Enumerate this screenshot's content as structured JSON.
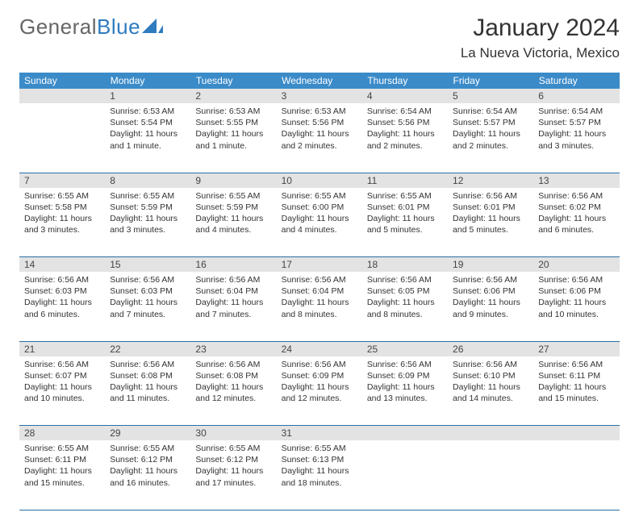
{
  "brand": {
    "part1": "General",
    "part2": "Blue"
  },
  "title": "January 2024",
  "location": "La Nueva Victoria, Mexico",
  "weekdays": [
    "Sunday",
    "Monday",
    "Tuesday",
    "Wednesday",
    "Thursday",
    "Friday",
    "Saturday"
  ],
  "colors": {
    "header_bg": "#3b8bc9",
    "header_text": "#ffffff",
    "daynum_bg": "#e3e3e3",
    "rule": "#2a6fa8",
    "brand_blue": "#2f7bbf"
  },
  "typography": {
    "title_fontsize": 30,
    "location_fontsize": 17,
    "weekday_fontsize": 12,
    "cell_fontsize": 10.5
  },
  "layout": {
    "columns": 7,
    "rows": 5,
    "first_weekday_offset": 1
  },
  "days": [
    {
      "n": 1,
      "sunrise": "6:53 AM",
      "sunset": "5:54 PM",
      "daylight": "11 hours and 1 minute."
    },
    {
      "n": 2,
      "sunrise": "6:53 AM",
      "sunset": "5:55 PM",
      "daylight": "11 hours and 1 minute."
    },
    {
      "n": 3,
      "sunrise": "6:53 AM",
      "sunset": "5:56 PM",
      "daylight": "11 hours and 2 minutes."
    },
    {
      "n": 4,
      "sunrise": "6:54 AM",
      "sunset": "5:56 PM",
      "daylight": "11 hours and 2 minutes."
    },
    {
      "n": 5,
      "sunrise": "6:54 AM",
      "sunset": "5:57 PM",
      "daylight": "11 hours and 2 minutes."
    },
    {
      "n": 6,
      "sunrise": "6:54 AM",
      "sunset": "5:57 PM",
      "daylight": "11 hours and 3 minutes."
    },
    {
      "n": 7,
      "sunrise": "6:55 AM",
      "sunset": "5:58 PM",
      "daylight": "11 hours and 3 minutes."
    },
    {
      "n": 8,
      "sunrise": "6:55 AM",
      "sunset": "5:59 PM",
      "daylight": "11 hours and 3 minutes."
    },
    {
      "n": 9,
      "sunrise": "6:55 AM",
      "sunset": "5:59 PM",
      "daylight": "11 hours and 4 minutes."
    },
    {
      "n": 10,
      "sunrise": "6:55 AM",
      "sunset": "6:00 PM",
      "daylight": "11 hours and 4 minutes."
    },
    {
      "n": 11,
      "sunrise": "6:55 AM",
      "sunset": "6:01 PM",
      "daylight": "11 hours and 5 minutes."
    },
    {
      "n": 12,
      "sunrise": "6:56 AM",
      "sunset": "6:01 PM",
      "daylight": "11 hours and 5 minutes."
    },
    {
      "n": 13,
      "sunrise": "6:56 AM",
      "sunset": "6:02 PM",
      "daylight": "11 hours and 6 minutes."
    },
    {
      "n": 14,
      "sunrise": "6:56 AM",
      "sunset": "6:03 PM",
      "daylight": "11 hours and 6 minutes."
    },
    {
      "n": 15,
      "sunrise": "6:56 AM",
      "sunset": "6:03 PM",
      "daylight": "11 hours and 7 minutes."
    },
    {
      "n": 16,
      "sunrise": "6:56 AM",
      "sunset": "6:04 PM",
      "daylight": "11 hours and 7 minutes."
    },
    {
      "n": 17,
      "sunrise": "6:56 AM",
      "sunset": "6:04 PM",
      "daylight": "11 hours and 8 minutes."
    },
    {
      "n": 18,
      "sunrise": "6:56 AM",
      "sunset": "6:05 PM",
      "daylight": "11 hours and 8 minutes."
    },
    {
      "n": 19,
      "sunrise": "6:56 AM",
      "sunset": "6:06 PM",
      "daylight": "11 hours and 9 minutes."
    },
    {
      "n": 20,
      "sunrise": "6:56 AM",
      "sunset": "6:06 PM",
      "daylight": "11 hours and 10 minutes."
    },
    {
      "n": 21,
      "sunrise": "6:56 AM",
      "sunset": "6:07 PM",
      "daylight": "11 hours and 10 minutes."
    },
    {
      "n": 22,
      "sunrise": "6:56 AM",
      "sunset": "6:08 PM",
      "daylight": "11 hours and 11 minutes."
    },
    {
      "n": 23,
      "sunrise": "6:56 AM",
      "sunset": "6:08 PM",
      "daylight": "11 hours and 12 minutes."
    },
    {
      "n": 24,
      "sunrise": "6:56 AM",
      "sunset": "6:09 PM",
      "daylight": "11 hours and 12 minutes."
    },
    {
      "n": 25,
      "sunrise": "6:56 AM",
      "sunset": "6:09 PM",
      "daylight": "11 hours and 13 minutes."
    },
    {
      "n": 26,
      "sunrise": "6:56 AM",
      "sunset": "6:10 PM",
      "daylight": "11 hours and 14 minutes."
    },
    {
      "n": 27,
      "sunrise": "6:56 AM",
      "sunset": "6:11 PM",
      "daylight": "11 hours and 15 minutes."
    },
    {
      "n": 28,
      "sunrise": "6:55 AM",
      "sunset": "6:11 PM",
      "daylight": "11 hours and 15 minutes."
    },
    {
      "n": 29,
      "sunrise": "6:55 AM",
      "sunset": "6:12 PM",
      "daylight": "11 hours and 16 minutes."
    },
    {
      "n": 30,
      "sunrise": "6:55 AM",
      "sunset": "6:12 PM",
      "daylight": "11 hours and 17 minutes."
    },
    {
      "n": 31,
      "sunrise": "6:55 AM",
      "sunset": "6:13 PM",
      "daylight": "11 hours and 18 minutes."
    }
  ],
  "labels": {
    "sunrise": "Sunrise:",
    "sunset": "Sunset:",
    "daylight": "Daylight:"
  }
}
